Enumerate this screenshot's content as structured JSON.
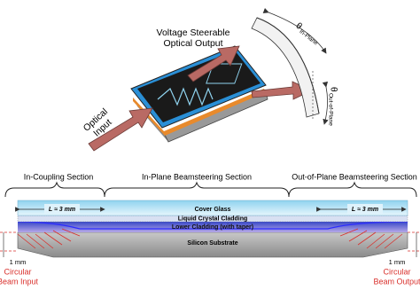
{
  "top": {
    "output_label": [
      "Voltage Steerable",
      "Optical Output"
    ],
    "in_plane": {
      "symbol": "θ",
      "sub": "In-Plane"
    },
    "out_of_plane": {
      "symbol": "θ",
      "sub": "Out-of-Plane"
    },
    "input_label": [
      "Optical",
      "Input"
    ]
  },
  "sections": [
    "In-Coupling Section",
    "In-Plane Beamsteering Section",
    "Out-of-Plane Beamsteering Section"
  ],
  "layers": [
    "Cover Glass",
    "Liquid Crystal Cladding",
    "Lower Cladding (with taper)",
    "Silicon Substrate"
  ],
  "lengths": [
    "L ≈ 3 mm",
    "L ≈ 3 mm"
  ],
  "beams": [
    {
      "size": "1 mm",
      "label": [
        "Circular",
        "Beam Input"
      ]
    },
    {
      "size": "1 mm",
      "label": [
        "Circular",
        "Beam Output"
      ]
    }
  ]
}
